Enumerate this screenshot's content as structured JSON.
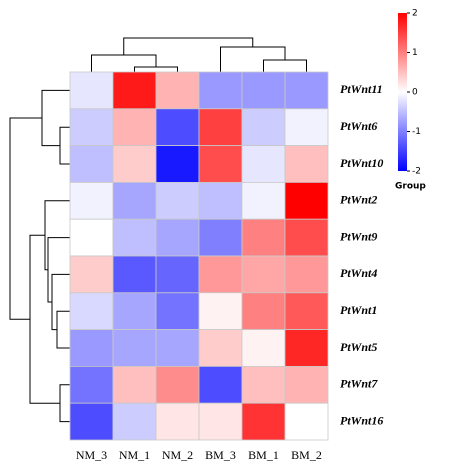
{
  "chart_data": {
    "type": "heatmap",
    "x": [
      "NM_3",
      "NM_1",
      "NM_2",
      "BM_3",
      "BM_1",
      "BM_2"
    ],
    "y": [
      "PtWnt11",
      "PtWnt6",
      "PtWnt10",
      "PtWnt2",
      "PtWnt9",
      "PtWnt4",
      "PtWnt1",
      "PtWnt5",
      "PtWnt7",
      "PtWnt16"
    ],
    "values": [
      [
        -0.2,
        1.8,
        0.6,
        -0.8,
        -0.8,
        -0.8
      ],
      [
        -0.4,
        0.6,
        -1.4,
        1.5,
        -0.4,
        -0.1
      ],
      [
        -0.5,
        0.4,
        -1.8,
        1.4,
        -0.2,
        0.5
      ],
      [
        -0.1,
        -0.7,
        -0.4,
        -0.5,
        -0.1,
        2.0
      ],
      [
        0,
        -0.5,
        -0.7,
        -1.0,
        1.0,
        1.4
      ],
      [
        0.4,
        -1.3,
        -1.2,
        0.8,
        0.7,
        0.8
      ],
      [
        -0.3,
        -0.7,
        -1.1,
        0.1,
        1.0,
        1.3
      ],
      [
        -0.8,
        -0.7,
        -0.7,
        0.4,
        0.1,
        1.7
      ],
      [
        -1.1,
        0.5,
        0.9,
        -1.4,
        0.5,
        0.6
      ],
      [
        -1.4,
        -0.4,
        0.2,
        0.2,
        1.6,
        0
      ]
    ],
    "colormap": [
      "#0000ff",
      "#ffffff",
      "#ff0000"
    ],
    "zlim": [
      -2,
      2
    ],
    "zticks": [
      -2,
      -1,
      0,
      1,
      2
    ],
    "legend_title": "Group"
  }
}
